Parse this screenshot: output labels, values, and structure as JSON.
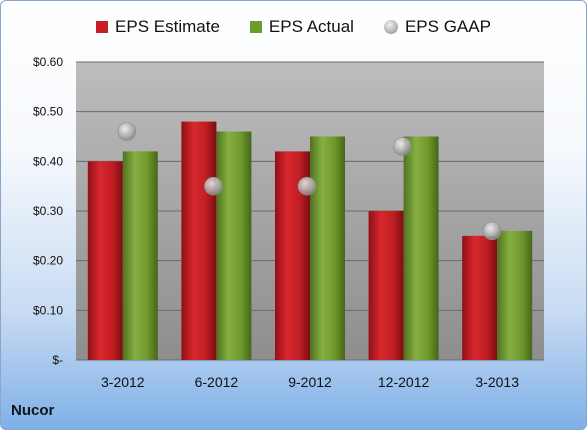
{
  "chart_data": {
    "type": "bar",
    "categories": [
      "3-2012",
      "6-2012",
      "9-2012",
      "12-2012",
      "3-2013"
    ],
    "series": [
      {
        "name": "EPS Estimate",
        "kind": "bar",
        "color": "#c42026",
        "values": [
          0.4,
          0.48,
          0.42,
          0.3,
          0.25
        ]
      },
      {
        "name": "EPS Actual",
        "kind": "bar",
        "color": "#6f9a2e",
        "values": [
          0.42,
          0.46,
          0.45,
          0.45,
          0.26
        ]
      },
      {
        "name": "EPS GAAP",
        "kind": "marker",
        "color": "#a9a9a9",
        "values": [
          0.46,
          0.35,
          0.35,
          0.43,
          0.26
        ]
      }
    ],
    "yticks": [
      {
        "value": 0.0,
        "label": "$-"
      },
      {
        "value": 0.1,
        "label": "$0.10"
      },
      {
        "value": 0.2,
        "label": "$0.20"
      },
      {
        "value": 0.3,
        "label": "$0.30"
      },
      {
        "value": 0.4,
        "label": "$0.40"
      },
      {
        "value": 0.5,
        "label": "$0.50"
      },
      {
        "value": 0.6,
        "label": "$0.60"
      }
    ],
    "ylim": [
      0,
      0.6
    ],
    "grid": true,
    "legend_position": "top"
  },
  "footer": {
    "company": "Nucor"
  }
}
